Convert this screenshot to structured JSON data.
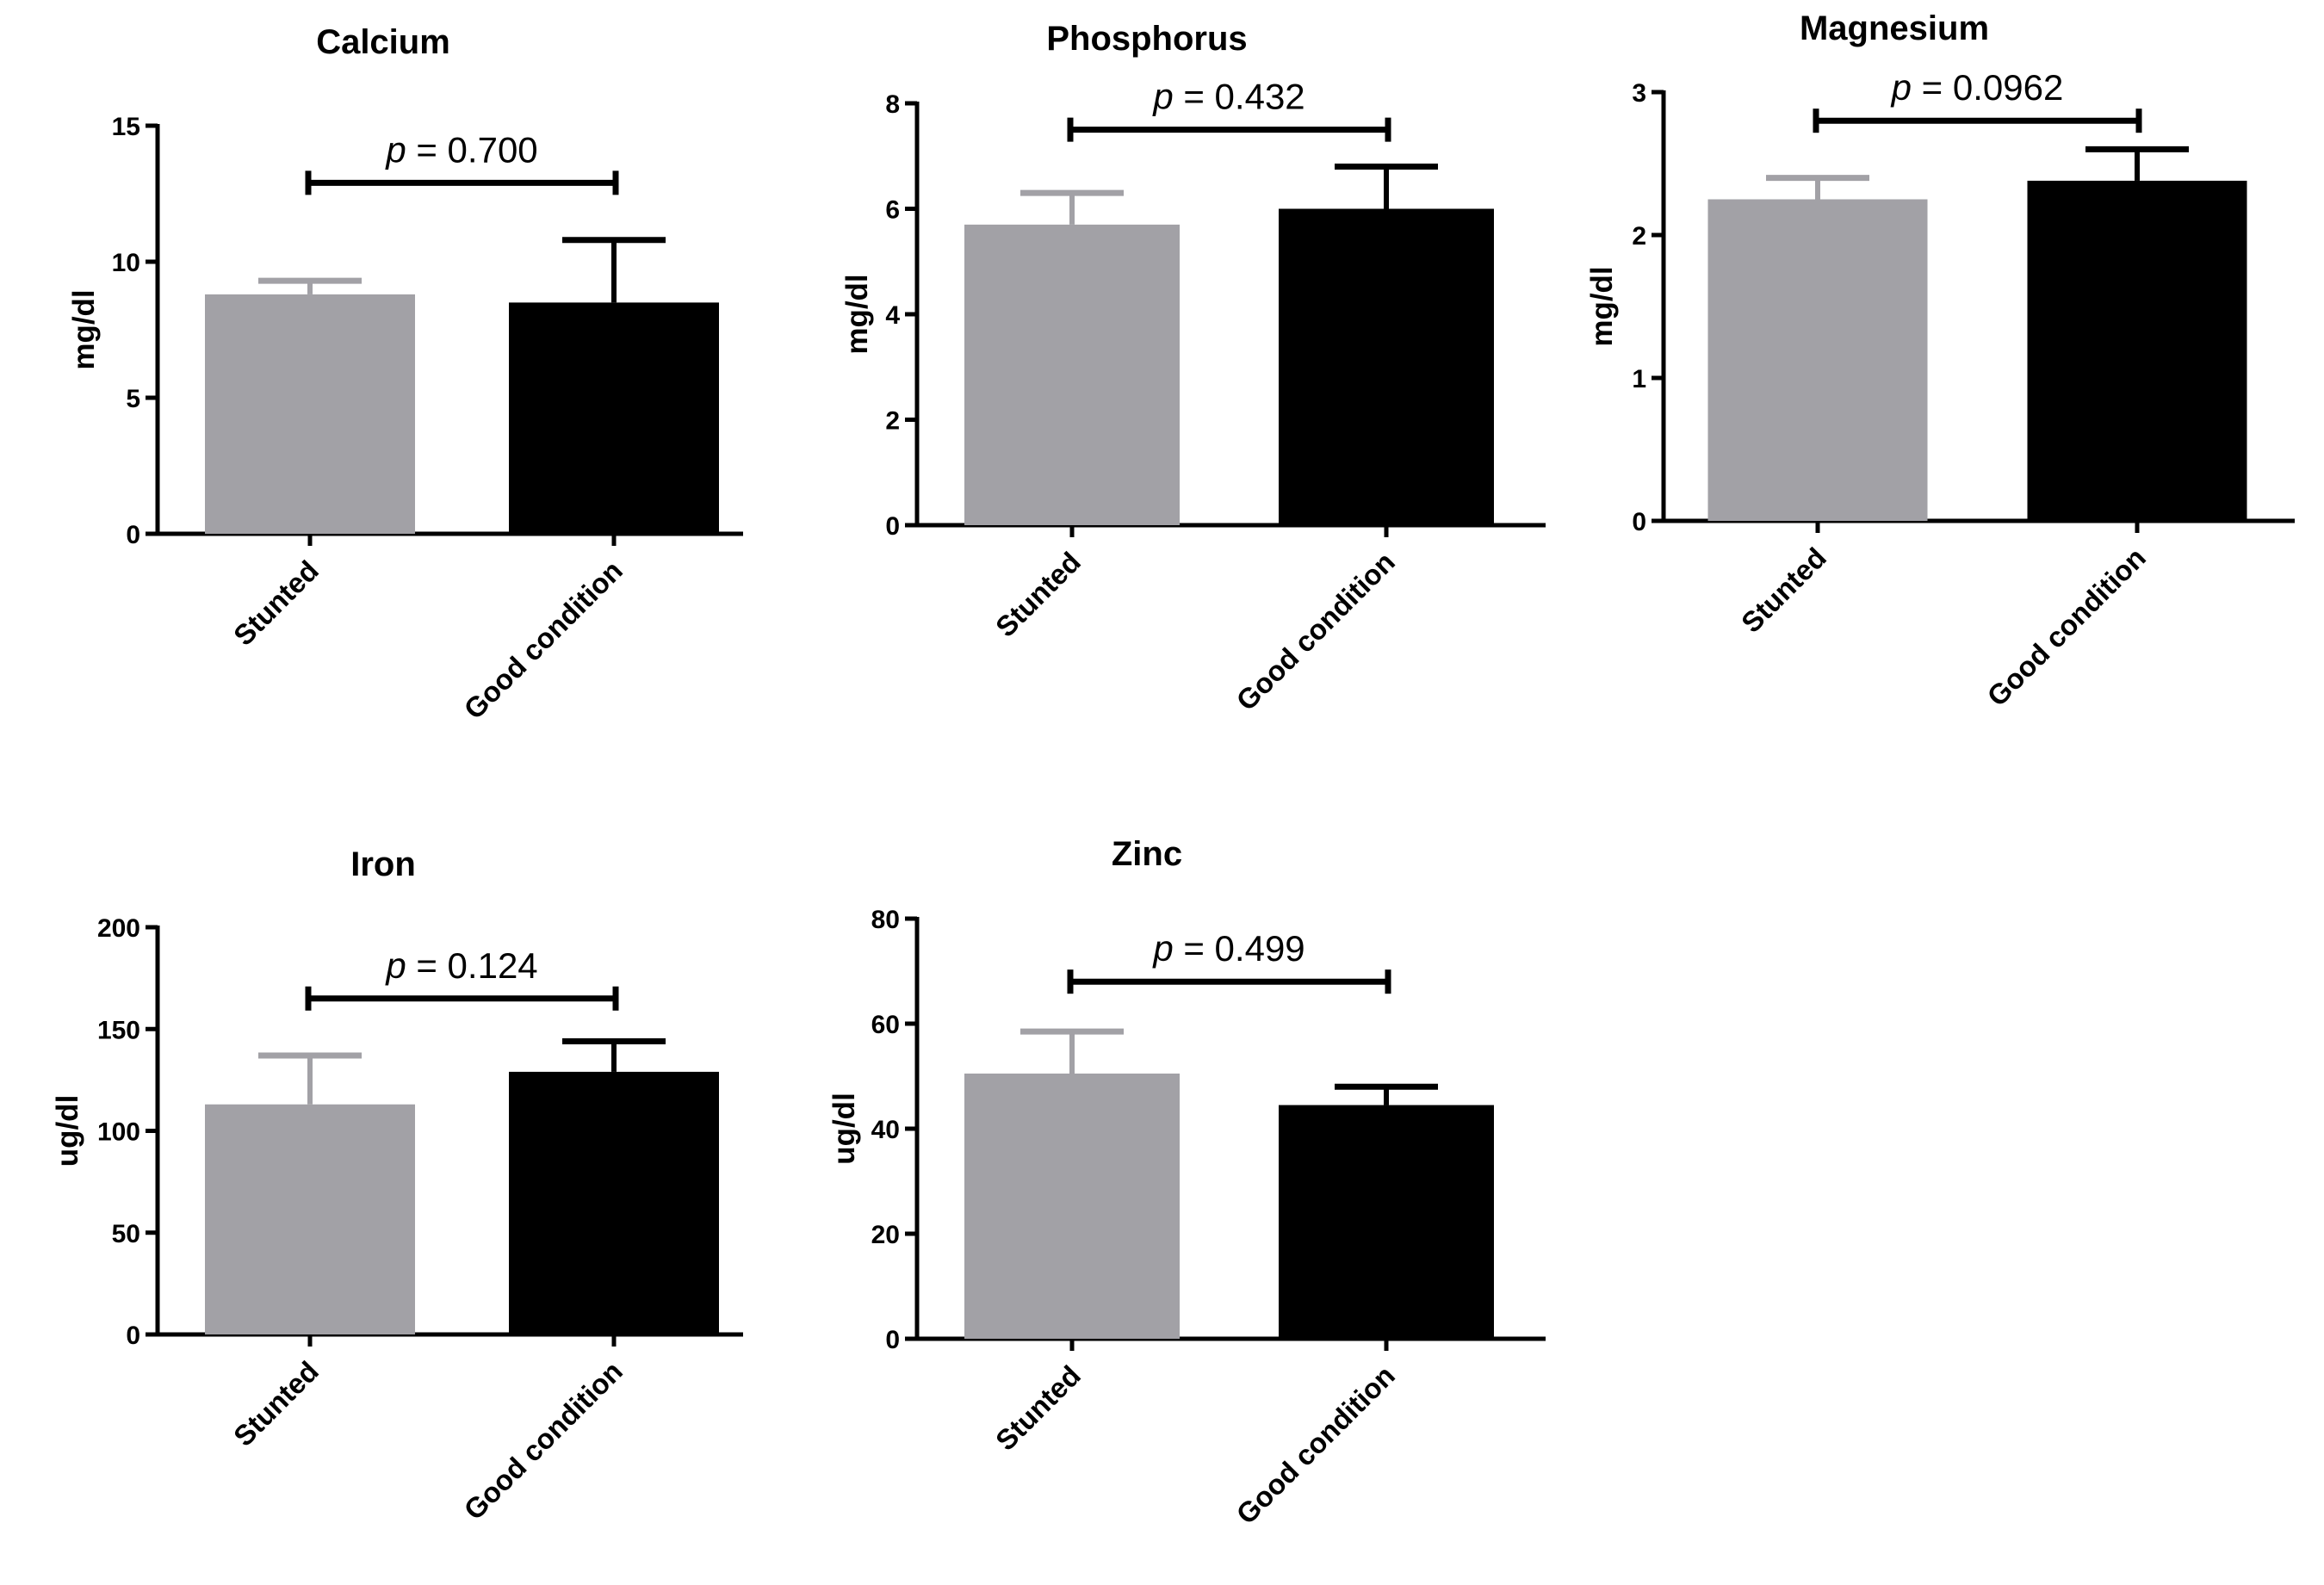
{
  "chart_data": [
    {
      "type": "bar",
      "title": "Calcium",
      "ylabel": "mg/dl",
      "categories": [
        "Stunted",
        "Good condition"
      ],
      "values": [
        8.8,
        8.5
      ],
      "error_upper": [
        9.3,
        10.8
      ],
      "yticks": [
        "0",
        "5",
        "10",
        "15"
      ],
      "ylim": [
        0,
        15
      ],
      "bracket_y": 12.9,
      "p_symbol": "p",
      "p_value": " = 0.700",
      "colors": [
        "#a2a1a6",
        "#000000"
      ]
    },
    {
      "type": "bar",
      "title": "Phosphorus",
      "ylabel": "mg/dl",
      "categories": [
        "Stunted",
        "Good condition"
      ],
      "values": [
        5.7,
        6.0
      ],
      "error_upper": [
        6.3,
        6.8
      ],
      "yticks": [
        "0",
        "2",
        "4",
        "6",
        "8"
      ],
      "ylim": [
        0,
        8
      ],
      "bracket_y": 7.5,
      "p_symbol": "p",
      "p_value": " = 0.432",
      "colors": [
        "#a2a1a6",
        "#000000"
      ]
    },
    {
      "type": "bar",
      "title": "Magnesium",
      "ylabel": "mg/dl",
      "categories": [
        "Stunted",
        "Good condition"
      ],
      "values": [
        2.25,
        2.38
      ],
      "error_upper": [
        2.4,
        2.6
      ],
      "yticks": [
        "0",
        "1",
        "2",
        "3"
      ],
      "ylim": [
        0,
        3
      ],
      "bracket_y": 2.8,
      "p_symbol": "p",
      "p_value": " = 0.0962",
      "colors": [
        "#a2a1a6",
        "#000000"
      ]
    },
    {
      "type": "bar",
      "title": "Iron",
      "ylabel": "ug/dl",
      "categories": [
        "Stunted",
        "Good condition"
      ],
      "values": [
        113,
        129
      ],
      "error_upper": [
        137,
        144
      ],
      "yticks": [
        "0",
        "50",
        "100",
        "150",
        "200"
      ],
      "ylim": [
        0,
        200
      ],
      "bracket_y": 165,
      "p_symbol": "p",
      "p_value": " = 0.124",
      "colors": [
        "#a2a1a6",
        "#000000"
      ]
    },
    {
      "type": "bar",
      "title": "Zinc",
      "ylabel": "ug/dl",
      "categories": [
        "Stunted",
        "Good condition"
      ],
      "values": [
        50.5,
        44.5
      ],
      "error_upper": [
        58.5,
        48
      ],
      "yticks": [
        "0",
        "20",
        "40",
        "60",
        "80"
      ],
      "ylim": [
        0,
        80
      ],
      "bracket_y": 68,
      "p_symbol": "p",
      "p_value": " = 0.499",
      "colors": [
        "#a2a1a6",
        "#000000"
      ]
    }
  ]
}
